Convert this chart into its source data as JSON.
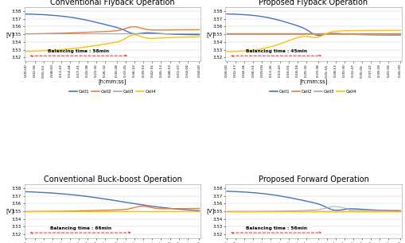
{
  "titles": [
    "Conventional Flyback Operation",
    "Proposed Flyback Operation",
    "Conventional Buck-boost Operation",
    "Proposed Forward Operation"
  ],
  "balancing_texts": [
    "Balancing time : 58min",
    "Balancing time : 45min",
    "Balancing time : 66min",
    "Balancing time : 56min"
  ],
  "ylabel": "[V]",
  "xlabel": "[h:mm:ss]",
  "ylim": [
    3.515,
    3.585
  ],
  "yticks": [
    3.52,
    3.53,
    3.54,
    3.55,
    3.56,
    3.57,
    3.58
  ],
  "colors": {
    "Cell1": "#4472C4",
    "Cell2": "#ED7D31",
    "Cell3": "#A5A5A5",
    "Cell4": "#FFC000"
  },
  "legend_labels": [
    "Cell1",
    "Cell2",
    "Cell3",
    "Cell4"
  ],
  "n_points": 60,
  "background": "#FFFFFF",
  "title_fontsize": 7,
  "tick_fontsize": 4,
  "label_fontsize": 5,
  "legend_fontsize": 4
}
